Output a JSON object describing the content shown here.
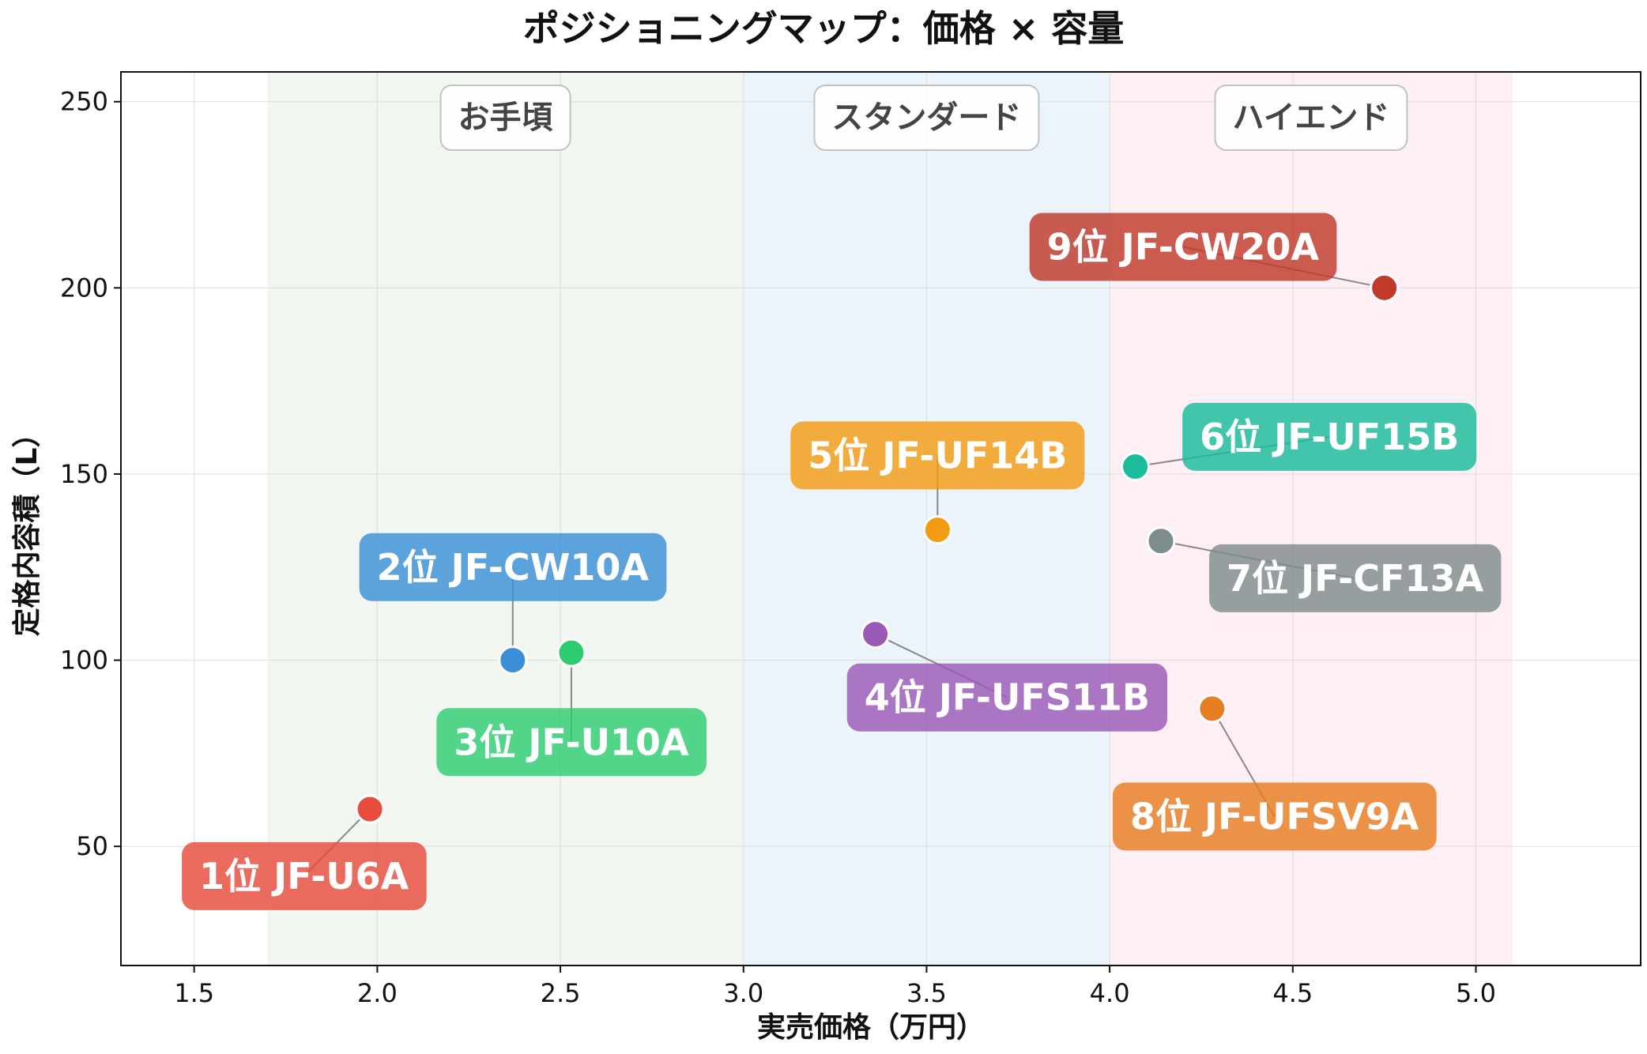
{
  "chart_data": {
    "type": "scatter",
    "title": "ポジショニングマップ：価格 × 容量",
    "xlabel": "実売価格（万円）",
    "ylabel": "定格内容積（L）",
    "xlim": [
      1.3,
      5.45
    ],
    "ylim": [
      18,
      258
    ],
    "x_ticks": [
      1.5,
      2.0,
      2.5,
      3.0,
      3.5,
      4.0,
      4.5,
      5.0
    ],
    "x_tick_labels": [
      "1.5",
      "2.0",
      "2.5",
      "3.0",
      "3.5",
      "4.0",
      "4.5",
      "5.0"
    ],
    "y_ticks": [
      50,
      100,
      150,
      200,
      250
    ],
    "y_tick_labels": [
      "50",
      "100",
      "150",
      "200",
      "250"
    ],
    "grid": true,
    "zones": [
      {
        "label": "お手頃",
        "x_range": [
          1.7,
          3.0
        ],
        "color": "#f1f6f1"
      },
      {
        "label": "スタンダード",
        "x_range": [
          3.0,
          4.0
        ],
        "color": "#ecf4fb"
      },
      {
        "label": "ハイエンド",
        "x_range": [
          4.0,
          5.1
        ],
        "color": "#fdeff3"
      }
    ],
    "points": [
      {
        "label": "1位 JF-U6A",
        "x": 1.98,
        "y": 60,
        "color": "#e74c3c",
        "label_x": 1.8,
        "label_y": 42
      },
      {
        "label": "2位 JF-CW10A",
        "x": 2.37,
        "y": 100,
        "color": "#3a8fd6",
        "label_x": 2.37,
        "label_y": 125
      },
      {
        "label": "3位 JF-U10A",
        "x": 2.53,
        "y": 102,
        "color": "#2ecc71",
        "label_x": 2.53,
        "label_y": 78
      },
      {
        "label": "4位 JF-UFS11B",
        "x": 3.36,
        "y": 107,
        "color": "#9b59b6",
        "label_x": 3.72,
        "label_y": 90
      },
      {
        "label": "5位 JF-UF14B",
        "x": 3.53,
        "y": 135,
        "color": "#f39c12",
        "label_x": 3.53,
        "label_y": 155
      },
      {
        "label": "6位 JF-UF15B",
        "x": 4.07,
        "y": 152,
        "color": "#1abc9c",
        "label_x": 4.6,
        "label_y": 160
      },
      {
        "label": "7位 JF-CF13A",
        "x": 4.14,
        "y": 132,
        "color": "#7f8c8d",
        "label_x": 4.67,
        "label_y": 122
      },
      {
        "label": "8位 JF-UFSV9A",
        "x": 4.28,
        "y": 87,
        "color": "#e67e22",
        "label_x": 4.45,
        "label_y": 58
      },
      {
        "label": "9位 JF-CW20A",
        "x": 4.75,
        "y": 200,
        "color": "#c0392b",
        "label_x": 4.2,
        "label_y": 211
      }
    ]
  }
}
